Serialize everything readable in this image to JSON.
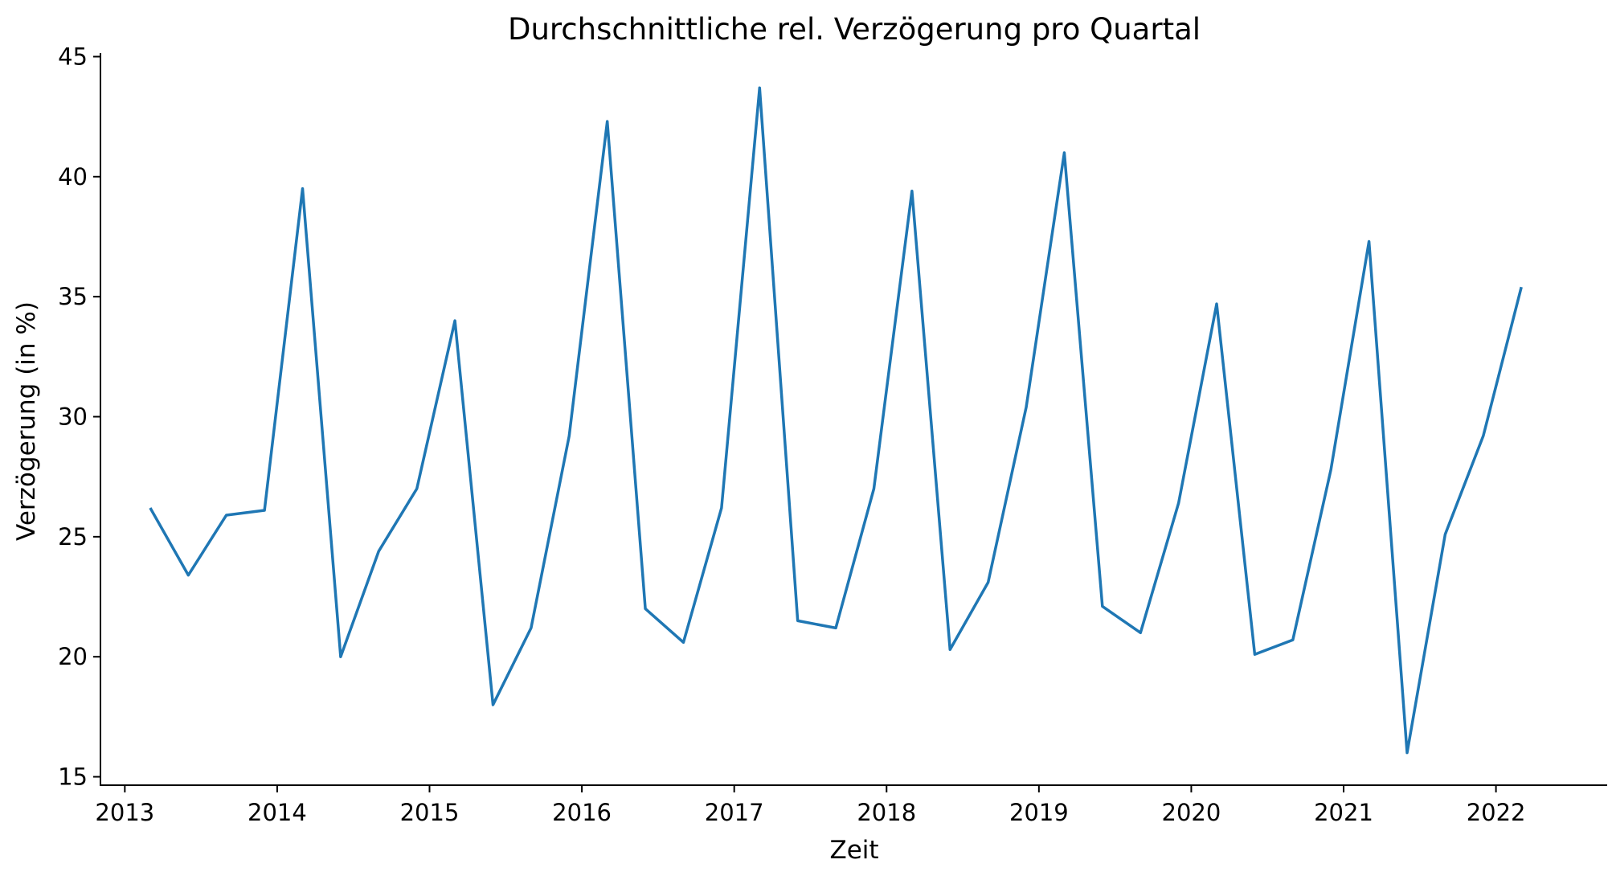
{
  "chart_data": {
    "type": "line",
    "title": "Durchschnittliche rel. Verzögerung pro Quartal",
    "xlabel": "Zeit",
    "ylabel": "Verzögerung (in %)",
    "xlim": [
      2012.84,
      2022.73
    ],
    "ylim": [
      14.65,
      45.15
    ],
    "x_ticks": [
      2013,
      2014,
      2015,
      2016,
      2017,
      2018,
      2019,
      2020,
      2021,
      2022
    ],
    "x_tick_labels": [
      "2013",
      "2014",
      "2015",
      "2016",
      "2017",
      "2018",
      "2019",
      "2020",
      "2021",
      "2022"
    ],
    "y_ticks": [
      15,
      20,
      25,
      30,
      35,
      40,
      45
    ],
    "y_tick_labels": [
      "15",
      "20",
      "25",
      "30",
      "35",
      "40",
      "45"
    ],
    "grid": false,
    "line_color": "#1f77b4",
    "series": [
      {
        "x": [
          "2013-03-01",
          "2013-06-01",
          "2013-09-01",
          "2013-12-01",
          "2014-03-01",
          "2014-06-01",
          "2014-09-01",
          "2014-12-01",
          "2015-03-01",
          "2015-06-01",
          "2015-09-01",
          "2015-12-01",
          "2016-03-01",
          "2016-06-01",
          "2016-09-01",
          "2016-12-01",
          "2017-03-01",
          "2017-06-01",
          "2017-09-01",
          "2017-12-01",
          "2018-03-01",
          "2018-06-01",
          "2018-09-01",
          "2018-12-01",
          "2019-03-01",
          "2019-06-01",
          "2019-09-01",
          "2019-12-01",
          "2020-03-01",
          "2020-06-01",
          "2020-09-01",
          "2020-12-01",
          "2021-03-01",
          "2021-06-01",
          "2021-09-01",
          "2021-12-01",
          "2022-03-01"
        ],
        "values": [
          26.2,
          23.4,
          25.9,
          26.1,
          39.5,
          20.0,
          24.4,
          27.0,
          34.0,
          18.0,
          21.2,
          29.2,
          42.3,
          22.0,
          20.6,
          26.2,
          43.7,
          21.5,
          21.2,
          27.0,
          39.4,
          20.3,
          23.1,
          30.4,
          41.0,
          22.1,
          21.0,
          26.4,
          34.7,
          20.1,
          20.7,
          27.8,
          37.3,
          16.0,
          25.1,
          29.2,
          35.4
        ]
      }
    ]
  }
}
